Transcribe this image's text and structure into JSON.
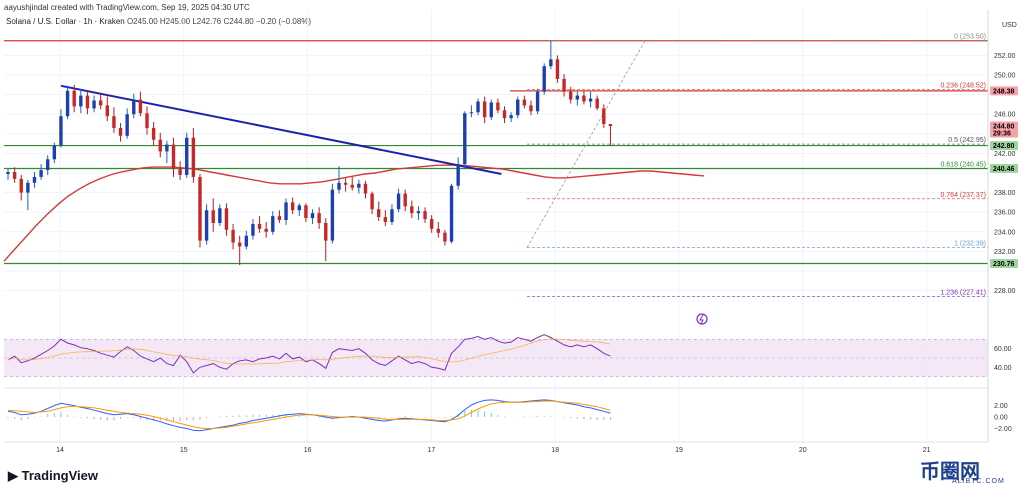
{
  "header": {
    "created": "aayushjindal created with TradingView.com, Sep 19, 2025 04:30 UTC"
  },
  "symbol": {
    "name": "Solana / U.S. Dollar · 1h · Kraken",
    "ohlc": "O245.00 H245.00 L242.76 C244.80 −0.20 (−0.08%)"
  },
  "currency": "USD",
  "colors": {
    "up": "#089981",
    "down": "#f23645",
    "candle_body": "#d32f2f",
    "trend": "#1e22aa",
    "ma": "#d53a3a",
    "hline_red": "#d53a3a",
    "hline_green": "#2e8b2e",
    "rsi": "#7e2dbd",
    "macd": "#2962ff",
    "signal": "#ff9800"
  },
  "branding": {
    "logo": "TradingView",
    "watermark": "币圈网",
    "watermark_sub": "ALIBTC.COM"
  },
  "chart_data": {
    "type": "candlestick",
    "title": "Solana / U.S. Dollar · 1h · Kraken",
    "x_ticks": [
      "14",
      "15",
      "16",
      "17",
      "18",
      "19",
      "20",
      "21"
    ],
    "y_ticks": [
      252.0,
      250.0,
      248.0,
      246.0,
      244.0,
      242.0,
      240.0,
      238.0,
      236.0,
      234.0,
      232.0,
      230.0,
      228.0
    ],
    "y_tick_labels": [
      "252.00",
      "250.00",
      "246.00",
      "242.00",
      "238.00",
      "236.00",
      "234.00",
      "232.00",
      "228.00"
    ],
    "ylim": [
      225.2,
      254.8
    ],
    "price_labels": [
      {
        "label": "248.38",
        "value": 248.38,
        "color": "#f23645"
      },
      {
        "label": "244.80",
        "sub": "29:36",
        "value": 244.8,
        "color": "#f23645"
      },
      {
        "label": "242.80",
        "value": 242.8,
        "color": "#2e8b2e"
      },
      {
        "label": "240.46",
        "value": 240.46,
        "color": "#2e8b2e"
      },
      {
        "label": "230.76",
        "value": 230.76,
        "color": "#2e8b2e"
      }
    ],
    "fibonacci": [
      {
        "ratio": "0",
        "label": "0 (253.50)",
        "value": 253.5,
        "color": "#888888"
      },
      {
        "ratio": "0.236",
        "label": "0.236 (248.52)",
        "value": 248.52,
        "color": "#d53a3a"
      },
      {
        "ratio": "0.5",
        "label": "0.5 (242.95)",
        "value": 242.95,
        "color": "#555555"
      },
      {
        "ratio": "0.618",
        "label": "0.618 (240.45)",
        "value": 240.45,
        "color": "#2e8b2e"
      },
      {
        "ratio": "0.764",
        "label": "0.764 (237.37)",
        "value": 237.37,
        "color": "#d53a3a"
      },
      {
        "ratio": "1",
        "label": "1 (232.39)",
        "value": 232.39,
        "color": "#6aa0cf"
      },
      {
        "ratio": "1.236",
        "label": "1.236 (227.41)",
        "value": 227.41,
        "color": "#7e2dbd"
      }
    ],
    "horizontal_levels": [
      {
        "value": 253.5,
        "color": "#d53a3a",
        "style": "solid"
      },
      {
        "value": 248.38,
        "color": "#d53a3a",
        "style": "solid"
      },
      {
        "value": 242.8,
        "color": "#2e8b2e",
        "style": "solid"
      },
      {
        "value": 240.46,
        "color": "#2e8b2e",
        "style": "solid"
      },
      {
        "value": 230.76,
        "color": "#2e8b2e",
        "style": "solid"
      }
    ],
    "trendline": {
      "from": {
        "bar": 8,
        "value": 248.9
      },
      "to": {
        "bar": 70,
        "value": 240.4
      }
    },
    "candles": [
      {
        "o": 239.9,
        "h": 240.4,
        "l": 239.3,
        "c": 240.1
      },
      {
        "o": 240.1,
        "h": 240.6,
        "l": 239.0,
        "c": 239.4
      },
      {
        "o": 239.4,
        "h": 239.8,
        "l": 237.2,
        "c": 238.0
      },
      {
        "o": 238.0,
        "h": 239.3,
        "l": 236.2,
        "c": 239.0
      },
      {
        "o": 239.0,
        "h": 240.1,
        "l": 238.5,
        "c": 239.6
      },
      {
        "o": 239.6,
        "h": 240.9,
        "l": 239.3,
        "c": 240.3
      },
      {
        "o": 240.3,
        "h": 241.8,
        "l": 239.8,
        "c": 241.4
      },
      {
        "o": 241.4,
        "h": 243.1,
        "l": 241.0,
        "c": 242.8
      },
      {
        "o": 242.8,
        "h": 246.5,
        "l": 242.6,
        "c": 245.8
      },
      {
        "o": 245.8,
        "h": 248.9,
        "l": 245.5,
        "c": 248.4
      },
      {
        "o": 248.4,
        "h": 249.0,
        "l": 246.2,
        "c": 246.8
      },
      {
        "o": 246.8,
        "h": 248.6,
        "l": 246.1,
        "c": 247.9
      },
      {
        "o": 247.9,
        "h": 248.3,
        "l": 246.0,
        "c": 246.6
      },
      {
        "o": 246.6,
        "h": 247.9,
        "l": 246.2,
        "c": 247.4
      },
      {
        "o": 247.4,
        "h": 248.2,
        "l": 246.5,
        "c": 246.9
      },
      {
        "o": 246.9,
        "h": 247.8,
        "l": 245.3,
        "c": 245.8
      },
      {
        "o": 245.8,
        "h": 246.7,
        "l": 244.1,
        "c": 244.6
      },
      {
        "o": 244.6,
        "h": 245.1,
        "l": 243.2,
        "c": 243.8
      },
      {
        "o": 243.8,
        "h": 246.6,
        "l": 243.5,
        "c": 246.0
      },
      {
        "o": 246.0,
        "h": 248.1,
        "l": 245.6,
        "c": 247.5
      },
      {
        "o": 247.5,
        "h": 248.3,
        "l": 245.8,
        "c": 246.1
      },
      {
        "o": 246.1,
        "h": 246.8,
        "l": 243.9,
        "c": 244.6
      },
      {
        "o": 244.6,
        "h": 245.2,
        "l": 242.8,
        "c": 243.4
      },
      {
        "o": 243.4,
        "h": 244.1,
        "l": 241.6,
        "c": 242.2
      },
      {
        "o": 242.2,
        "h": 243.3,
        "l": 241.0,
        "c": 242.9
      },
      {
        "o": 242.9,
        "h": 243.6,
        "l": 239.6,
        "c": 240.4
      },
      {
        "o": 240.4,
        "h": 241.2,
        "l": 239.3,
        "c": 239.8
      },
      {
        "o": 239.8,
        "h": 244.1,
        "l": 239.5,
        "c": 243.6
      },
      {
        "o": 243.6,
        "h": 244.6,
        "l": 239.0,
        "c": 239.6
      },
      {
        "o": 239.6,
        "h": 239.9,
        "l": 232.4,
        "c": 233.1
      },
      {
        "o": 233.1,
        "h": 236.8,
        "l": 232.7,
        "c": 236.2
      },
      {
        "o": 236.2,
        "h": 237.4,
        "l": 234.0,
        "c": 234.9
      },
      {
        "o": 234.9,
        "h": 236.8,
        "l": 234.6,
        "c": 236.4
      },
      {
        "o": 236.4,
        "h": 236.9,
        "l": 233.6,
        "c": 234.2
      },
      {
        "o": 234.2,
        "h": 234.8,
        "l": 232.2,
        "c": 232.9
      },
      {
        "o": 232.9,
        "h": 233.6,
        "l": 230.6,
        "c": 232.5
      },
      {
        "o": 232.5,
        "h": 234.1,
        "l": 232.2,
        "c": 233.6
      },
      {
        "o": 233.6,
        "h": 235.3,
        "l": 233.2,
        "c": 234.8
      },
      {
        "o": 234.8,
        "h": 235.6,
        "l": 233.9,
        "c": 234.3
      },
      {
        "o": 234.3,
        "h": 235.0,
        "l": 233.4,
        "c": 234.0
      },
      {
        "o": 234.0,
        "h": 236.1,
        "l": 233.7,
        "c": 235.6
      },
      {
        "o": 235.6,
        "h": 236.2,
        "l": 234.9,
        "c": 235.2
      },
      {
        "o": 235.2,
        "h": 237.4,
        "l": 234.7,
        "c": 237.0
      },
      {
        "o": 237.0,
        "h": 237.5,
        "l": 235.8,
        "c": 236.2
      },
      {
        "o": 236.2,
        "h": 236.9,
        "l": 235.6,
        "c": 236.7
      },
      {
        "o": 236.7,
        "h": 236.9,
        "l": 235.0,
        "c": 235.4
      },
      {
        "o": 235.4,
        "h": 236.3,
        "l": 234.8,
        "c": 235.9
      },
      {
        "o": 235.9,
        "h": 236.5,
        "l": 234.3,
        "c": 234.9
      },
      {
        "o": 234.9,
        "h": 235.4,
        "l": 231.0,
        "c": 233.1
      },
      {
        "o": 233.1,
        "h": 238.9,
        "l": 232.8,
        "c": 238.3
      },
      {
        "o": 238.3,
        "h": 240.7,
        "l": 237.9,
        "c": 239.0
      },
      {
        "o": 239.0,
        "h": 239.5,
        "l": 238.1,
        "c": 238.8
      },
      {
        "o": 238.8,
        "h": 239.6,
        "l": 238.2,
        "c": 238.5
      },
      {
        "o": 238.5,
        "h": 239.3,
        "l": 237.9,
        "c": 238.9
      },
      {
        "o": 238.9,
        "h": 239.2,
        "l": 237.4,
        "c": 237.9
      },
      {
        "o": 237.9,
        "h": 238.1,
        "l": 235.8,
        "c": 236.3
      },
      {
        "o": 236.3,
        "h": 237.1,
        "l": 235.1,
        "c": 235.5
      },
      {
        "o": 235.5,
        "h": 236.2,
        "l": 234.6,
        "c": 235.0
      },
      {
        "o": 235.0,
        "h": 236.8,
        "l": 234.7,
        "c": 236.3
      },
      {
        "o": 236.3,
        "h": 238.4,
        "l": 236.0,
        "c": 237.9
      },
      {
        "o": 237.9,
        "h": 238.3,
        "l": 236.1,
        "c": 236.6
      },
      {
        "o": 236.6,
        "h": 237.2,
        "l": 235.4,
        "c": 235.9
      },
      {
        "o": 235.9,
        "h": 236.6,
        "l": 235.2,
        "c": 236.1
      },
      {
        "o": 236.1,
        "h": 236.5,
        "l": 234.9,
        "c": 235.3
      },
      {
        "o": 235.3,
        "h": 235.7,
        "l": 233.9,
        "c": 234.3
      },
      {
        "o": 234.3,
        "h": 235.0,
        "l": 233.4,
        "c": 233.9
      },
      {
        "o": 233.9,
        "h": 234.2,
        "l": 232.6,
        "c": 233.0
      },
      {
        "o": 233.0,
        "h": 238.9,
        "l": 232.8,
        "c": 238.7
      },
      {
        "o": 238.7,
        "h": 241.6,
        "l": 238.3,
        "c": 240.9
      },
      {
        "o": 240.9,
        "h": 246.3,
        "l": 240.4,
        "c": 246.1
      },
      {
        "o": 246.1,
        "h": 246.9,
        "l": 245.7,
        "c": 246.2
      },
      {
        "o": 246.2,
        "h": 247.6,
        "l": 245.9,
        "c": 247.3
      },
      {
        "o": 247.3,
        "h": 247.8,
        "l": 245.1,
        "c": 245.7
      },
      {
        "o": 245.7,
        "h": 247.5,
        "l": 245.4,
        "c": 247.2
      },
      {
        "o": 247.2,
        "h": 247.6,
        "l": 246.1,
        "c": 246.4
      },
      {
        "o": 246.4,
        "h": 246.8,
        "l": 245.1,
        "c": 245.6
      },
      {
        "o": 245.6,
        "h": 246.2,
        "l": 245.2,
        "c": 245.9
      },
      {
        "o": 245.9,
        "h": 247.8,
        "l": 245.6,
        "c": 247.5
      },
      {
        "o": 247.5,
        "h": 247.9,
        "l": 246.6,
        "c": 246.9
      },
      {
        "o": 246.9,
        "h": 247.4,
        "l": 245.9,
        "c": 246.3
      },
      {
        "o": 246.3,
        "h": 248.6,
        "l": 246.0,
        "c": 248.3
      },
      {
        "o": 248.3,
        "h": 251.2,
        "l": 248.0,
        "c": 250.9
      },
      {
        "o": 250.9,
        "h": 253.5,
        "l": 250.6,
        "c": 251.6
      },
      {
        "o": 251.6,
        "h": 252.0,
        "l": 249.2,
        "c": 249.6
      },
      {
        "o": 249.6,
        "h": 250.1,
        "l": 247.8,
        "c": 248.3
      },
      {
        "o": 248.3,
        "h": 248.8,
        "l": 247.1,
        "c": 247.5
      },
      {
        "o": 247.5,
        "h": 248.3,
        "l": 246.9,
        "c": 247.9
      },
      {
        "o": 247.9,
        "h": 248.4,
        "l": 247.0,
        "c": 247.3
      },
      {
        "o": 247.3,
        "h": 248.3,
        "l": 246.7,
        "c": 247.6
      },
      {
        "o": 247.6,
        "h": 247.9,
        "l": 246.4,
        "c": 246.6
      },
      {
        "o": 246.6,
        "h": 247.0,
        "l": 244.6,
        "c": 245.0
      },
      {
        "o": 245.0,
        "h": 245.0,
        "l": 242.76,
        "c": 244.8
      }
    ],
    "ma_series": [
      231.0,
      232.2,
      233.4,
      234.6,
      235.7,
      236.7,
      237.6,
      238.3,
      238.9,
      239.4,
      239.8,
      240.1,
      240.3,
      240.5,
      240.6,
      240.6,
      240.6,
      240.5,
      240.4,
      240.2,
      240.0,
      239.8,
      239.6,
      239.4,
      239.2,
      239.0,
      238.9,
      238.9,
      238.9,
      239.0,
      239.1,
      239.3,
      239.5,
      239.7,
      239.9,
      240.0,
      240.2,
      240.4,
      240.5,
      240.6,
      240.7,
      240.8,
      240.8,
      240.8,
      240.7,
      240.6,
      240.5,
      240.4,
      240.2,
      240.0,
      239.8,
      239.6,
      239.5,
      239.5,
      239.6,
      239.7,
      239.8,
      239.9,
      240.0,
      240.1,
      240.2,
      240.2,
      240.1,
      240.0,
      239.9,
      239.8,
      239.7
    ],
    "rsi": {
      "values": [
        48,
        52,
        45,
        47,
        50,
        54,
        58,
        63,
        70,
        66,
        64,
        61,
        60,
        58,
        55,
        53,
        51,
        57,
        62,
        58,
        52,
        49,
        46,
        50,
        44,
        42,
        53,
        46,
        34,
        40,
        42,
        44,
        40,
        38,
        44,
        47,
        48,
        46,
        49,
        50,
        52,
        49,
        55,
        49,
        51,
        46,
        48,
        44,
        39,
        56,
        60,
        59,
        58,
        60,
        55,
        48,
        44,
        42,
        47,
        52,
        48,
        44,
        46,
        44,
        40,
        39,
        37,
        55,
        62,
        70,
        71,
        73,
        70,
        72,
        68,
        66,
        67,
        72,
        70,
        68,
        72,
        75,
        72,
        68,
        64,
        62,
        64,
        62,
        64,
        60,
        55,
        52
      ],
      "upper": 70,
      "lower": 30,
      "mid": 50,
      "ticks": [
        60.0,
        40.0
      ]
    },
    "macd": {
      "macd": [
        1.0,
        0.8,
        0.4,
        0.5,
        0.7,
        1.0,
        1.5,
        2.0,
        2.4,
        2.2,
        2.0,
        1.7,
        1.5,
        1.2,
        0.9,
        0.6,
        0.4,
        0.5,
        0.6,
        0.4,
        0.1,
        -0.2,
        -0.5,
        -0.8,
        -1.2,
        -1.5,
        -1.8,
        -2.0,
        -2.3,
        -2.4,
        -2.2,
        -2.0,
        -1.8,
        -1.6,
        -1.4,
        -1.1,
        -0.9,
        -0.6,
        -0.4,
        -0.2,
        0.0,
        0.2,
        0.4,
        0.5,
        0.6,
        0.5,
        0.4,
        0.2,
        0.0,
        -0.2,
        -0.1,
        0.0,
        0.1,
        0.0,
        -0.2,
        -0.4,
        -0.6,
        -0.7,
        -0.5,
        -0.3,
        -0.2,
        -0.3,
        -0.4,
        -0.5,
        -0.6,
        -0.7,
        -0.8,
        -0.4,
        0.3,
        1.3,
        2.1,
        2.6,
        2.9,
        3.0,
        2.9,
        2.7,
        2.6,
        2.6,
        2.7,
        2.8,
        2.9,
        3.0,
        2.9,
        2.7,
        2.5,
        2.3,
        2.1,
        1.8,
        1.6,
        1.3,
        1.0,
        0.7
      ],
      "signal": [
        1.2,
        1.1,
        1.0,
        0.9,
        0.8,
        0.9,
        1.0,
        1.3,
        1.6,
        1.8,
        1.9,
        1.8,
        1.7,
        1.6,
        1.4,
        1.2,
        1.0,
        0.8,
        0.7,
        0.6,
        0.5,
        0.3,
        0.1,
        -0.2,
        -0.5,
        -0.8,
        -1.1,
        -1.4,
        -1.7,
        -1.9,
        -2.0,
        -2.0,
        -1.9,
        -1.8,
        -1.6,
        -1.4,
        -1.2,
        -1.0,
        -0.8,
        -0.6,
        -0.4,
        -0.2,
        0.0,
        0.2,
        0.3,
        0.4,
        0.4,
        0.3,
        0.2,
        0.1,
        0.0,
        0.0,
        0.0,
        0.0,
        0.0,
        -0.1,
        -0.2,
        -0.4,
        -0.4,
        -0.4,
        -0.4,
        -0.4,
        -0.4,
        -0.4,
        -0.5,
        -0.6,
        -0.6,
        -0.5,
        -0.3,
        0.2,
        0.8,
        1.4,
        1.9,
        2.3,
        2.5,
        2.6,
        2.6,
        2.6,
        2.6,
        2.7,
        2.7,
        2.8,
        2.8,
        2.7,
        2.6,
        2.5,
        2.4,
        2.2,
        2.0,
        1.8,
        1.5,
        1.2
      ],
      "ticks": [
        2.0,
        0.0,
        -2.0
      ]
    }
  }
}
